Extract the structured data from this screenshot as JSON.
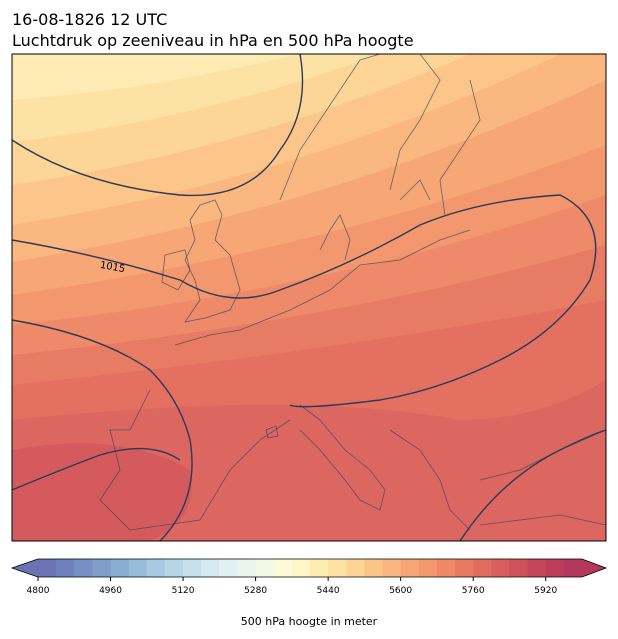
{
  "header": {
    "title": "16-08-1826 12 UTC",
    "subtitle": "Luchtdruk op zeeniveau in hPa en 500 hPa hoogte"
  },
  "map": {
    "isobar_labels": [
      "1015"
    ]
  },
  "colorbar": {
    "label": "500 hPa hoogte in meter",
    "range": [
      4800,
      6000
    ],
    "ticks": [
      4800,
      4960,
      5120,
      5280,
      5440,
      5600,
      5760,
      5920
    ],
    "extend": "both",
    "colors": [
      "#6b73b5",
      "#6f81bc",
      "#7690c4",
      "#7f9fcb",
      "#8aaed3",
      "#98bcdb",
      "#a7cae2",
      "#b6d6e8",
      "#c5e1ee",
      "#d3eaf2",
      "#e0f0f3",
      "#ebf5ef",
      "#f4f8e6",
      "#fbfad6",
      "#fef6c4",
      "#fdecb2",
      "#fde2a3",
      "#fdd495",
      "#fcc588",
      "#fab67e",
      "#f7a674",
      "#f3976d",
      "#ee8867",
      "#e87a62",
      "#e16c5e",
      "#d95f5c",
      "#cf525b",
      "#c5465a",
      "#bb3d59",
      "#b2375a"
    ]
  }
}
